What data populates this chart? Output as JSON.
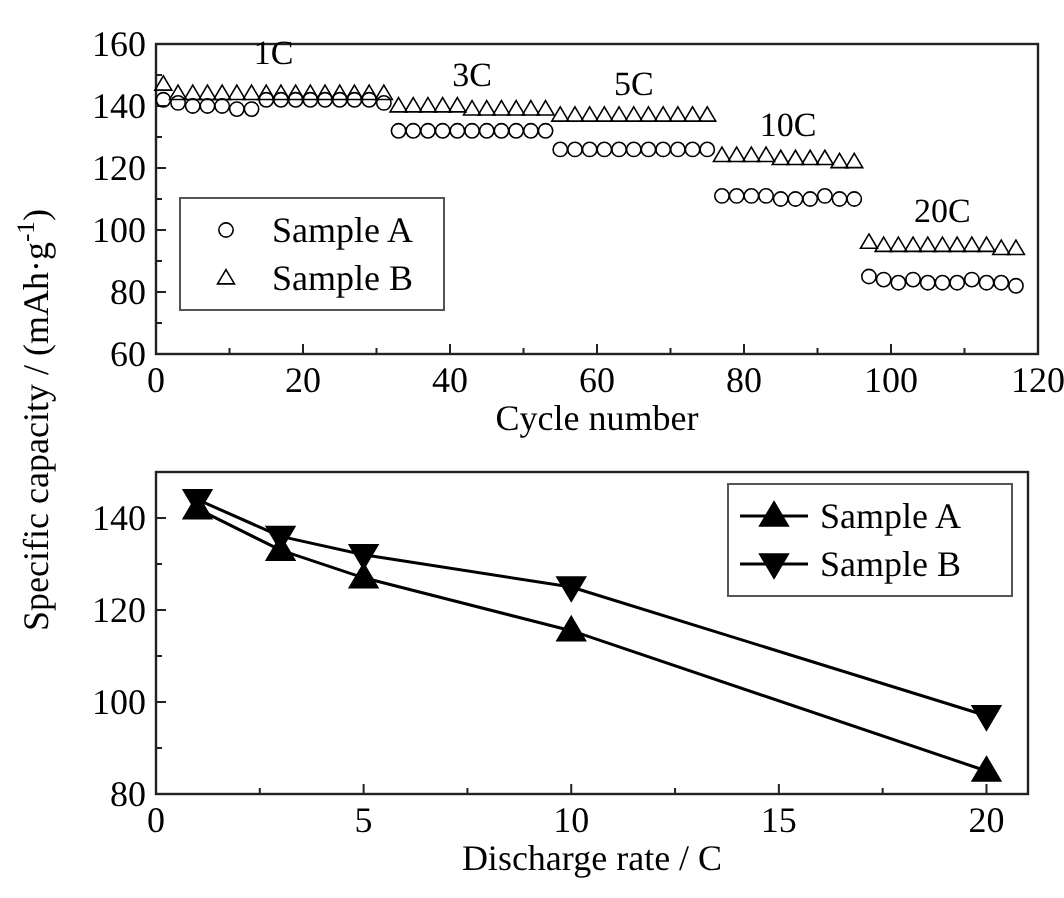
{
  "chart_data": [
    {
      "type": "scatter",
      "xlabel": "Cycle number",
      "xlim": [
        0,
        120
      ],
      "xticks": [
        0,
        20,
        40,
        60,
        80,
        100,
        120
      ],
      "ylim": [
        60,
        160
      ],
      "yticks": [
        60,
        80,
        100,
        120,
        140,
        160
      ],
      "legend": "bottom left",
      "grid": false,
      "x": [
        1,
        3,
        5,
        7,
        9,
        11,
        13,
        15,
        17,
        19,
        21,
        23,
        25,
        27,
        29,
        31,
        33,
        35,
        37,
        39,
        41,
        43,
        45,
        47,
        49,
        51,
        53,
        55,
        57,
        59,
        61,
        63,
        65,
        67,
        69,
        71,
        73,
        75,
        77,
        79,
        81,
        83,
        85,
        87,
        89,
        91,
        93,
        95,
        97,
        99,
        101,
        103,
        105,
        107,
        109,
        111,
        113,
        115,
        117
      ],
      "series": [
        {
          "name": "Sample A",
          "color": "#000000",
          "marker": "circle",
          "values": [
            142,
            141,
            140,
            140,
            140,
            139,
            139,
            142,
            142,
            142,
            142,
            142,
            142,
            142,
            142,
            141,
            132,
            132,
            132,
            132,
            132,
            132,
            132,
            132,
            132,
            132,
            132,
            126,
            126,
            126,
            126,
            126,
            126,
            126,
            126,
            126,
            126,
            126,
            111,
            111,
            111,
            111,
            110,
            110,
            110,
            111,
            110,
            110,
            85,
            84,
            83,
            84,
            83,
            83,
            83,
            84,
            83,
            83,
            82
          ]
        },
        {
          "name": "Sample B",
          "color": "#000000",
          "marker": "triangle",
          "values": [
            147,
            144,
            144,
            144,
            144,
            144,
            144,
            144,
            144,
            144,
            144,
            144,
            144,
            144,
            144,
            144,
            140,
            140,
            140,
            140,
            140,
            139,
            139,
            139,
            139,
            139,
            139,
            137,
            137,
            137,
            137,
            137,
            137,
            137,
            137,
            137,
            137,
            137,
            124,
            124,
            124,
            124,
            123,
            123,
            123,
            123,
            122,
            122,
            96,
            95,
            95,
            95,
            95,
            95,
            95,
            95,
            95,
            94,
            94
          ]
        }
      ],
      "annotations": [
        "1C",
        "3C",
        "5C",
        "10C",
        "20C"
      ]
    },
    {
      "type": "line",
      "xlabel": "Discharge rate / C",
      "ylabel": "Specific capacity / (mAh·g$^{-1}$)",
      "xlim": [
        0,
        21
      ],
      "xticks": [
        0,
        5,
        10,
        15,
        20
      ],
      "ylim": [
        80,
        150
      ],
      "yticks": [
        80,
        100,
        120,
        140
      ],
      "legend": "top right",
      "grid": false,
      "x": [
        1,
        3,
        5,
        10,
        20
      ],
      "series": [
        {
          "name": "Sample A",
          "color": "#000000",
          "marker": "triangle",
          "values": [
            142,
            133,
            127,
            115.5,
            85
          ]
        },
        {
          "name": "Sample B",
          "color": "#000000",
          "marker": "triangle-down",
          "values": [
            144,
            136,
            132,
            125,
            97
          ]
        }
      ]
    }
  ]
}
